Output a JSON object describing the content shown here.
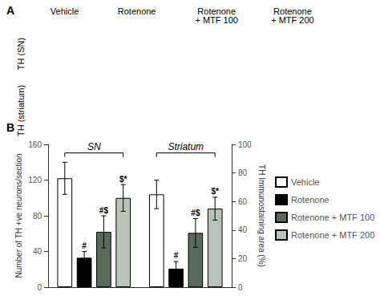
{
  "chart_data": {
    "type": "bar",
    "panel_labels": [
      "A",
      "B"
    ],
    "column_headers": [
      "Vehicle",
      "Rotenone",
      "Rotenone\n+ MTF 100",
      "Rotenone\n+ MTF 200"
    ],
    "row_labels": [
      "TH (SN)",
      "TH (striatum)"
    ],
    "categories": [
      "SN",
      "Striatum"
    ],
    "ylabel": "Number of TH +ve neurons/section",
    "y2label": "TH Immunostaining area (%)",
    "ylim": [
      0,
      160
    ],
    "yticks": [
      0,
      40,
      80,
      120,
      160
    ],
    "y2lim": [
      0,
      100
    ],
    "y2ticks": [
      0,
      20,
      40,
      60,
      80,
      100
    ],
    "grid": false,
    "legend": "right",
    "tick_labels": "y",
    "series": [
      {
        "name": "Vehicle",
        "color": "white",
        "values": [
          122,
          null
        ],
        "errors": [
          18,
          null
        ]
      },
      {
        "name": "Rotenone",
        "color": "black",
        "values": [
          33,
          null
        ],
        "errors": [
          7,
          null
        ],
        "annotations": [
          "#",
          null
        ]
      },
      {
        "name": "Rotenone + MTF 100",
        "color": "#5a6a5a",
        "values": [
          62,
          null
        ],
        "errors": [
          18,
          null
        ],
        "annotations": [
          "#$",
          null
        ]
      },
      {
        "name": "Rotenone + MTF 200",
        "color": "#b8c4b8",
        "values": [
          100,
          null
        ],
        "errors": [
          15,
          null
        ],
        "annotations": [
          "$*",
          null
        ]
      },
      {
        "name": "Vehicle",
        "color": "white",
        "axis": "y2",
        "values": [
          null,
          65
        ],
        "errors": [
          null,
          10
        ]
      },
      {
        "name": "Rotenone",
        "color": "black",
        "axis": "y2",
        "values": [
          null,
          13
        ],
        "errors": [
          null,
          5
        ],
        "annotations": [
          null,
          "#"
        ]
      },
      {
        "name": "Rotenone + MTF 100",
        "color": "#5a6a5a",
        "axis": "y2",
        "values": [
          null,
          38
        ],
        "errors": [
          null,
          10
        ],
        "annotations": [
          null,
          "#$"
        ]
      },
      {
        "name": "Rotenone + MTF 200",
        "color": "#b8c4b8",
        "axis": "y2",
        "values": [
          null,
          55
        ],
        "errors": [
          null,
          8
        ],
        "annotations": [
          null,
          "$*"
        ]
      }
    ]
  }
}
